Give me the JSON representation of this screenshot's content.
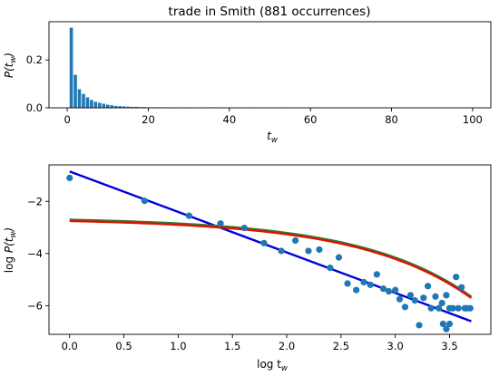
{
  "colors": {
    "bar": "#1f77b4",
    "points": "#1f77b4",
    "power_fit": "#0000dd",
    "fit_green": "#2e7d32",
    "fit_red": "#dd1100"
  },
  "chart_data": [
    {
      "type": "bar",
      "title": "trade in Smith (881 occurrences)",
      "xlabel": "t",
      "xlabel_sub": "w",
      "ylabel": "P(t",
      "ylabel_sub": "w",
      "ylabel_close": ")",
      "xlim": [
        -4.5,
        104.5
      ],
      "ylim": [
        0,
        0.36
      ],
      "xticks": [
        0,
        20,
        40,
        60,
        80,
        100
      ],
      "xtick_labels": [
        "0",
        "20",
        "40",
        "60",
        "80",
        "100"
      ],
      "yticks": [
        0,
        0.2
      ],
      "ytick_labels": [
        "0.0",
        "0.2"
      ],
      "x": [
        1,
        2,
        3,
        4,
        5,
        6,
        7,
        8,
        9,
        10,
        11,
        12,
        13,
        14,
        15,
        16,
        17,
        18,
        19,
        20,
        21,
        22,
        23,
        24,
        25,
        27,
        29,
        30,
        33,
        35,
        36,
        38,
        40,
        46,
        53,
        60,
        62
      ],
      "values": [
        0.335,
        0.138,
        0.078,
        0.058,
        0.044,
        0.033,
        0.025,
        0.021,
        0.017,
        0.013,
        0.011,
        0.008,
        0.007,
        0.006,
        0.005,
        0.004,
        0.004,
        0.003,
        0.003,
        0.002,
        0.002,
        0.002,
        0.002,
        0.001,
        0.002,
        0.001,
        0.001,
        0.001,
        0.001,
        0.002,
        0.001,
        0.001,
        0.001,
        0.001,
        0.001,
        0.001,
        0.001
      ]
    },
    {
      "type": "scatter",
      "xlabel": "log t",
      "xlabel_sub": "w",
      "ylabel": "log P(t",
      "ylabel_sub": "w",
      "ylabel_close": ")",
      "xlim": [
        -0.19,
        3.88
      ],
      "ylim": [
        -7.1,
        -0.6
      ],
      "xticks": [
        0,
        0.5,
        1,
        1.5,
        2,
        2.5,
        3,
        3.5
      ],
      "xtick_labels": [
        "0.0",
        "0.5",
        "1.0",
        "1.5",
        "2.0",
        "2.5",
        "3.0",
        "3.5"
      ],
      "yticks": [
        -6,
        -4,
        -2
      ],
      "ytick_labels": [
        "−6",
        "−4",
        "−2"
      ],
      "x": [
        0.0,
        0.69,
        1.1,
        1.39,
        1.61,
        1.79,
        1.95,
        2.08,
        2.2,
        2.3,
        2.4,
        2.48,
        2.56,
        2.64,
        2.71,
        2.77,
        2.83,
        2.89,
        2.94,
        3.0,
        3.04,
        3.09,
        3.14,
        3.18,
        3.22,
        3.26,
        3.3,
        3.33,
        3.37,
        3.4,
        3.43,
        3.47,
        3.5,
        3.53,
        3.56,
        3.58,
        3.61,
        3.64,
        3.66,
        3.69,
        3.44,
        3.47,
        3.5
      ],
      "y": [
        -1.1,
        -1.98,
        -2.55,
        -2.85,
        -3.02,
        -3.6,
        -3.9,
        -3.5,
        -3.9,
        -3.85,
        -4.55,
        -4.15,
        -5.15,
        -5.4,
        -5.1,
        -5.2,
        -4.8,
        -5.35,
        -5.45,
        -5.4,
        -5.75,
        -6.05,
        -5.6,
        -5.8,
        -6.75,
        -5.7,
        -5.25,
        -6.1,
        -5.65,
        -6.1,
        -5.9,
        -5.6,
        -6.1,
        -6.1,
        -4.9,
        -6.1,
        -5.3,
        -6.1,
        -6.1,
        -6.1,
        -6.7,
        -6.9,
        -6.7
      ]
    }
  ]
}
